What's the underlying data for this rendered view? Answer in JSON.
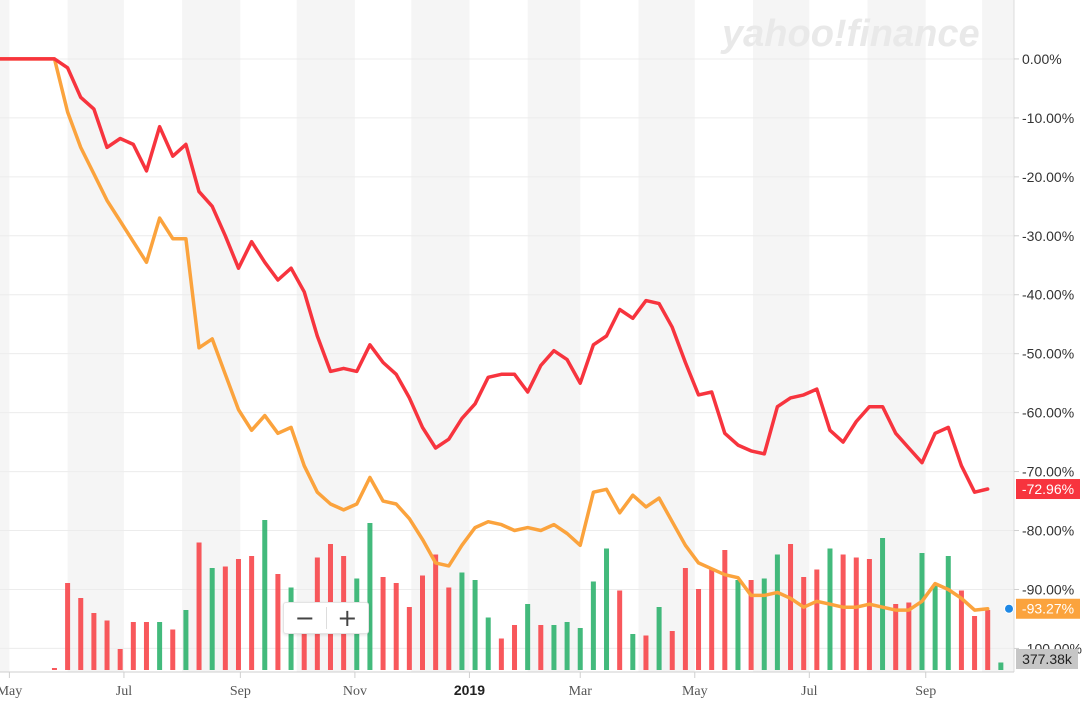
{
  "brand": {
    "watermark": "yahoo!finance"
  },
  "zoom": {
    "minus_label": "−",
    "plus_label": "+"
  },
  "chart_data": {
    "type": "line",
    "y_unit": "percent change",
    "ylim": [
      -104,
      10
    ],
    "yticks": [
      {
        "value": 0,
        "label": "0.00%"
      },
      {
        "value": -10,
        "label": "-10.00%"
      },
      {
        "value": -20,
        "label": "-20.00%"
      },
      {
        "value": -30,
        "label": "-30.00%"
      },
      {
        "value": -40,
        "label": "-40.00%"
      },
      {
        "value": -50,
        "label": "-50.00%"
      },
      {
        "value": -60,
        "label": "-60.00%"
      },
      {
        "value": -70,
        "label": "-70.00%"
      },
      {
        "value": -80,
        "label": "-80.00%"
      },
      {
        "value": -90,
        "label": "-90.00%"
      },
      {
        "value": -100,
        "label": "-100.00%"
      }
    ],
    "xticks": [
      {
        "date": "2018-05-01",
        "label": "May"
      },
      {
        "date": "2018-07-01",
        "label": "Jul"
      },
      {
        "date": "2018-09-01",
        "label": "Sep"
      },
      {
        "date": "2018-11-01",
        "label": "Nov"
      },
      {
        "date": "2019-01-01",
        "label": "2019"
      },
      {
        "date": "2019-03-01",
        "label": "Mar"
      },
      {
        "date": "2019-05-01",
        "label": "May"
      },
      {
        "date": "2019-07-01",
        "label": "Jul"
      },
      {
        "date": "2019-09-01",
        "label": "Sep"
      }
    ],
    "x_start": "2018-04-26",
    "x_end": "2019-10-18",
    "grid": true,
    "month_shading": true,
    "series": [
      {
        "color": "#f7343e",
        "last_value_label": "-72.96%",
        "points": [
          [
            "2018-04-26",
            0.0
          ],
          [
            "2018-05-25",
            0.0
          ],
          [
            "2018-06-01",
            -1.5
          ],
          [
            "2018-06-08",
            -6.5
          ],
          [
            "2018-06-15",
            -8.5
          ],
          [
            "2018-06-22",
            -15.0
          ],
          [
            "2018-06-29",
            -13.5
          ],
          [
            "2018-07-06",
            -14.5
          ],
          [
            "2018-07-13",
            -19.0
          ],
          [
            "2018-07-20",
            -11.5
          ],
          [
            "2018-07-27",
            -16.5
          ],
          [
            "2018-08-03",
            -14.5
          ],
          [
            "2018-08-10",
            -22.5
          ],
          [
            "2018-08-17",
            -25.0
          ],
          [
            "2018-08-24",
            -30.0
          ],
          [
            "2018-08-31",
            -35.5
          ],
          [
            "2018-09-07",
            -31.0
          ],
          [
            "2018-09-14",
            -34.5
          ],
          [
            "2018-09-21",
            -37.5
          ],
          [
            "2018-09-28",
            -35.5
          ],
          [
            "2018-10-05",
            -39.5
          ],
          [
            "2018-10-12",
            -47.0
          ],
          [
            "2018-10-19",
            -53.0
          ],
          [
            "2018-10-26",
            -52.5
          ],
          [
            "2018-11-02",
            -53.0
          ],
          [
            "2018-11-09",
            -48.5
          ],
          [
            "2018-11-16",
            -51.5
          ],
          [
            "2018-11-23",
            -53.5
          ],
          [
            "2018-11-30",
            -57.5
          ],
          [
            "2018-12-07",
            -62.5
          ],
          [
            "2018-12-14",
            -66.0
          ],
          [
            "2018-12-21",
            -64.5
          ],
          [
            "2018-12-28",
            -61.0
          ],
          [
            "2019-01-04",
            -58.5
          ],
          [
            "2019-01-11",
            -54.0
          ],
          [
            "2019-01-18",
            -53.5
          ],
          [
            "2019-01-25",
            -53.5
          ],
          [
            "2019-02-01",
            -56.5
          ],
          [
            "2019-02-08",
            -52.0
          ],
          [
            "2019-02-15",
            -49.5
          ],
          [
            "2019-02-22",
            -51.0
          ],
          [
            "2019-03-01",
            -55.0
          ],
          [
            "2019-03-08",
            -48.5
          ],
          [
            "2019-03-15",
            -47.0
          ],
          [
            "2019-03-22",
            -42.5
          ],
          [
            "2019-03-29",
            -44.0
          ],
          [
            "2019-04-05",
            -41.0
          ],
          [
            "2019-04-12",
            -41.5
          ],
          [
            "2019-04-19",
            -45.5
          ],
          [
            "2019-04-26",
            -51.5
          ],
          [
            "2019-05-03",
            -57.0
          ],
          [
            "2019-05-10",
            -56.5
          ],
          [
            "2019-05-17",
            -63.5
          ],
          [
            "2019-05-24",
            -65.5
          ],
          [
            "2019-05-31",
            -66.5
          ],
          [
            "2019-06-07",
            -67.0
          ],
          [
            "2019-06-14",
            -59.0
          ],
          [
            "2019-06-21",
            -57.5
          ],
          [
            "2019-06-28",
            -57.0
          ],
          [
            "2019-07-05",
            -56.0
          ],
          [
            "2019-07-12",
            -63.0
          ],
          [
            "2019-07-19",
            -65.0
          ],
          [
            "2019-07-26",
            -61.5
          ],
          [
            "2019-08-02",
            -59.0
          ],
          [
            "2019-08-09",
            -59.0
          ],
          [
            "2019-08-16",
            -63.5
          ],
          [
            "2019-08-23",
            -66.0
          ],
          [
            "2019-08-30",
            -68.5
          ],
          [
            "2019-09-06",
            -63.5
          ],
          [
            "2019-09-13",
            -62.5
          ],
          [
            "2019-09-20",
            -69.0
          ],
          [
            "2019-09-27",
            -73.5
          ],
          [
            "2019-10-04",
            -72.96
          ]
        ]
      },
      {
        "color": "#fba33d",
        "last_value_label": "-93.27%",
        "points": [
          [
            "2018-04-26",
            0.0
          ],
          [
            "2018-05-25",
            0.0
          ],
          [
            "2018-06-01",
            -9.0
          ],
          [
            "2018-06-08",
            -15.0
          ],
          [
            "2018-06-15",
            -19.5
          ],
          [
            "2018-06-22",
            -24.0
          ],
          [
            "2018-06-29",
            -27.5
          ],
          [
            "2018-07-06",
            -31.0
          ],
          [
            "2018-07-13",
            -34.5
          ],
          [
            "2018-07-20",
            -27.0
          ],
          [
            "2018-07-27",
            -30.5
          ],
          [
            "2018-08-03",
            -30.5
          ],
          [
            "2018-08-10",
            -49.0
          ],
          [
            "2018-08-17",
            -47.5
          ],
          [
            "2018-08-24",
            -53.5
          ],
          [
            "2018-08-31",
            -59.5
          ],
          [
            "2018-09-07",
            -63.0
          ],
          [
            "2018-09-14",
            -60.5
          ],
          [
            "2018-09-21",
            -63.5
          ],
          [
            "2018-09-28",
            -62.5
          ],
          [
            "2018-10-05",
            -69.0
          ],
          [
            "2018-10-12",
            -73.5
          ],
          [
            "2018-10-19",
            -75.5
          ],
          [
            "2018-10-26",
            -76.5
          ],
          [
            "2018-11-02",
            -75.5
          ],
          [
            "2018-11-09",
            -71.0
          ],
          [
            "2018-11-16",
            -75.0
          ],
          [
            "2018-11-23",
            -75.5
          ],
          [
            "2018-11-30",
            -78.0
          ],
          [
            "2018-12-07",
            -81.5
          ],
          [
            "2018-12-14",
            -85.5
          ],
          [
            "2018-12-21",
            -86.0
          ],
          [
            "2018-12-28",
            -82.5
          ],
          [
            "2019-01-04",
            -79.5
          ],
          [
            "2019-01-11",
            -78.5
          ],
          [
            "2019-01-18",
            -79.0
          ],
          [
            "2019-01-25",
            -80.0
          ],
          [
            "2019-02-01",
            -79.5
          ],
          [
            "2019-02-08",
            -80.0
          ],
          [
            "2019-02-15",
            -79.0
          ],
          [
            "2019-02-22",
            -80.5
          ],
          [
            "2019-03-01",
            -82.5
          ],
          [
            "2019-03-08",
            -73.5
          ],
          [
            "2019-03-15",
            -73.0
          ],
          [
            "2019-03-22",
            -77.0
          ],
          [
            "2019-03-29",
            -74.0
          ],
          [
            "2019-04-05",
            -76.0
          ],
          [
            "2019-04-12",
            -74.5
          ],
          [
            "2019-04-19",
            -78.5
          ],
          [
            "2019-04-26",
            -82.5
          ],
          [
            "2019-05-03",
            -85.5
          ],
          [
            "2019-05-10",
            -86.5
          ],
          [
            "2019-05-17",
            -87.5
          ],
          [
            "2019-05-24",
            -88.0
          ],
          [
            "2019-05-31",
            -91.0
          ],
          [
            "2019-06-07",
            -91.0
          ],
          [
            "2019-06-14",
            -90.5
          ],
          [
            "2019-06-21",
            -91.5
          ],
          [
            "2019-06-28",
            -93.0
          ],
          [
            "2019-07-05",
            -92.0
          ],
          [
            "2019-07-12",
            -92.5
          ],
          [
            "2019-07-19",
            -93.0
          ],
          [
            "2019-07-26",
            -93.0
          ],
          [
            "2019-08-02",
            -92.5
          ],
          [
            "2019-08-09",
            -93.0
          ],
          [
            "2019-08-16",
            -93.5
          ],
          [
            "2019-08-23",
            -93.5
          ],
          [
            "2019-08-30",
            -92.0
          ],
          [
            "2019-09-06",
            -89.0
          ],
          [
            "2019-09-13",
            -90.0
          ],
          [
            "2019-09-20",
            -91.5
          ],
          [
            "2019-09-27",
            -93.5
          ],
          [
            "2019-10-04",
            -93.27
          ]
        ]
      }
    ],
    "volume": {
      "last_value_label": "377.38k",
      "up_color": "#2fb36e",
      "down_color": "#f7464a",
      "bars": [
        {
          "date": "2018-05-25",
          "level": 0.01,
          "dir": "down"
        },
        {
          "date": "2018-06-01",
          "level": 0.58,
          "dir": "down"
        },
        {
          "date": "2018-06-08",
          "level": 0.48,
          "dir": "down"
        },
        {
          "date": "2018-06-15",
          "level": 0.38,
          "dir": "down"
        },
        {
          "date": "2018-06-22",
          "level": 0.33,
          "dir": "down"
        },
        {
          "date": "2018-06-29",
          "level": 0.14,
          "dir": "down"
        },
        {
          "date": "2018-07-06",
          "level": 0.32,
          "dir": "down"
        },
        {
          "date": "2018-07-13",
          "level": 0.32,
          "dir": "down"
        },
        {
          "date": "2018-07-20",
          "level": 0.32,
          "dir": "up"
        },
        {
          "date": "2018-07-27",
          "level": 0.27,
          "dir": "down"
        },
        {
          "date": "2018-08-03",
          "level": 0.4,
          "dir": "up"
        },
        {
          "date": "2018-08-10",
          "level": 0.85,
          "dir": "down"
        },
        {
          "date": "2018-08-17",
          "level": 0.68,
          "dir": "up"
        },
        {
          "date": "2018-08-24",
          "level": 0.69,
          "dir": "down"
        },
        {
          "date": "2018-08-31",
          "level": 0.74,
          "dir": "down"
        },
        {
          "date": "2018-09-07",
          "level": 0.76,
          "dir": "down"
        },
        {
          "date": "2018-09-14",
          "level": 1.0,
          "dir": "up"
        },
        {
          "date": "2018-09-21",
          "level": 0.64,
          "dir": "down"
        },
        {
          "date": "2018-09-28",
          "level": 0.55,
          "dir": "up"
        },
        {
          "date": "2018-10-05",
          "level": 0.26,
          "dir": "down"
        },
        {
          "date": "2018-10-12",
          "level": 0.75,
          "dir": "down"
        },
        {
          "date": "2018-10-19",
          "level": 0.84,
          "dir": "down"
        },
        {
          "date": "2018-10-26",
          "level": 0.76,
          "dir": "down"
        },
        {
          "date": "2018-11-02",
          "level": 0.61,
          "dir": "up"
        },
        {
          "date": "2018-11-09",
          "level": 0.98,
          "dir": "up"
        },
        {
          "date": "2018-11-16",
          "level": 0.62,
          "dir": "down"
        },
        {
          "date": "2018-11-23",
          "level": 0.58,
          "dir": "down"
        },
        {
          "date": "2018-11-30",
          "level": 0.42,
          "dir": "down"
        },
        {
          "date": "2018-12-07",
          "level": 0.63,
          "dir": "down"
        },
        {
          "date": "2018-12-14",
          "level": 0.77,
          "dir": "down"
        },
        {
          "date": "2018-12-21",
          "level": 0.55,
          "dir": "down"
        },
        {
          "date": "2018-12-28",
          "level": 0.65,
          "dir": "up"
        },
        {
          "date": "2019-01-04",
          "level": 0.6,
          "dir": "up"
        },
        {
          "date": "2019-01-11",
          "level": 0.35,
          "dir": "up"
        },
        {
          "date": "2019-01-18",
          "level": 0.21,
          "dir": "down"
        },
        {
          "date": "2019-01-25",
          "level": 0.3,
          "dir": "down"
        },
        {
          "date": "2019-02-01",
          "level": 0.44,
          "dir": "up"
        },
        {
          "date": "2019-02-08",
          "level": 0.3,
          "dir": "down"
        },
        {
          "date": "2019-02-15",
          "level": 0.3,
          "dir": "up"
        },
        {
          "date": "2019-02-22",
          "level": 0.32,
          "dir": "up"
        },
        {
          "date": "2019-03-01",
          "level": 0.28,
          "dir": "up"
        },
        {
          "date": "2019-03-08",
          "level": 0.59,
          "dir": "up"
        },
        {
          "date": "2019-03-15",
          "level": 0.81,
          "dir": "up"
        },
        {
          "date": "2019-03-22",
          "level": 0.53,
          "dir": "down"
        },
        {
          "date": "2019-03-29",
          "level": 0.24,
          "dir": "up"
        },
        {
          "date": "2019-04-05",
          "level": 0.23,
          "dir": "down"
        },
        {
          "date": "2019-04-12",
          "level": 0.42,
          "dir": "up"
        },
        {
          "date": "2019-04-19",
          "level": 0.26,
          "dir": "down"
        },
        {
          "date": "2019-04-26",
          "level": 0.68,
          "dir": "down"
        },
        {
          "date": "2019-05-03",
          "level": 0.54,
          "dir": "down"
        },
        {
          "date": "2019-05-10",
          "level": 0.68,
          "dir": "down"
        },
        {
          "date": "2019-05-17",
          "level": 0.8,
          "dir": "down"
        },
        {
          "date": "2019-05-24",
          "level": 0.6,
          "dir": "up"
        },
        {
          "date": "2019-05-31",
          "level": 0.6,
          "dir": "down"
        },
        {
          "date": "2019-06-07",
          "level": 0.61,
          "dir": "up"
        },
        {
          "date": "2019-06-14",
          "level": 0.77,
          "dir": "up"
        },
        {
          "date": "2019-06-21",
          "level": 0.84,
          "dir": "down"
        },
        {
          "date": "2019-06-28",
          "level": 0.62,
          "dir": "down"
        },
        {
          "date": "2019-07-05",
          "level": 0.67,
          "dir": "down"
        },
        {
          "date": "2019-07-12",
          "level": 0.81,
          "dir": "up"
        },
        {
          "date": "2019-07-19",
          "level": 0.77,
          "dir": "down"
        },
        {
          "date": "2019-07-26",
          "level": 0.75,
          "dir": "down"
        },
        {
          "date": "2019-08-02",
          "level": 0.74,
          "dir": "down"
        },
        {
          "date": "2019-08-09",
          "level": 0.88,
          "dir": "up"
        },
        {
          "date": "2019-08-16",
          "level": 0.44,
          "dir": "down"
        },
        {
          "date": "2019-08-23",
          "level": 0.45,
          "dir": "down"
        },
        {
          "date": "2019-08-30",
          "level": 0.78,
          "dir": "up"
        },
        {
          "date": "2019-09-06",
          "level": 0.56,
          "dir": "up"
        },
        {
          "date": "2019-09-13",
          "level": 0.76,
          "dir": "up"
        },
        {
          "date": "2019-09-20",
          "level": 0.53,
          "dir": "down"
        },
        {
          "date": "2019-09-27",
          "level": 0.36,
          "dir": "down"
        },
        {
          "date": "2019-10-04",
          "level": 0.4,
          "dir": "down"
        },
        {
          "date": "2019-10-11",
          "level": 0.05,
          "dir": "up"
        }
      ]
    }
  }
}
